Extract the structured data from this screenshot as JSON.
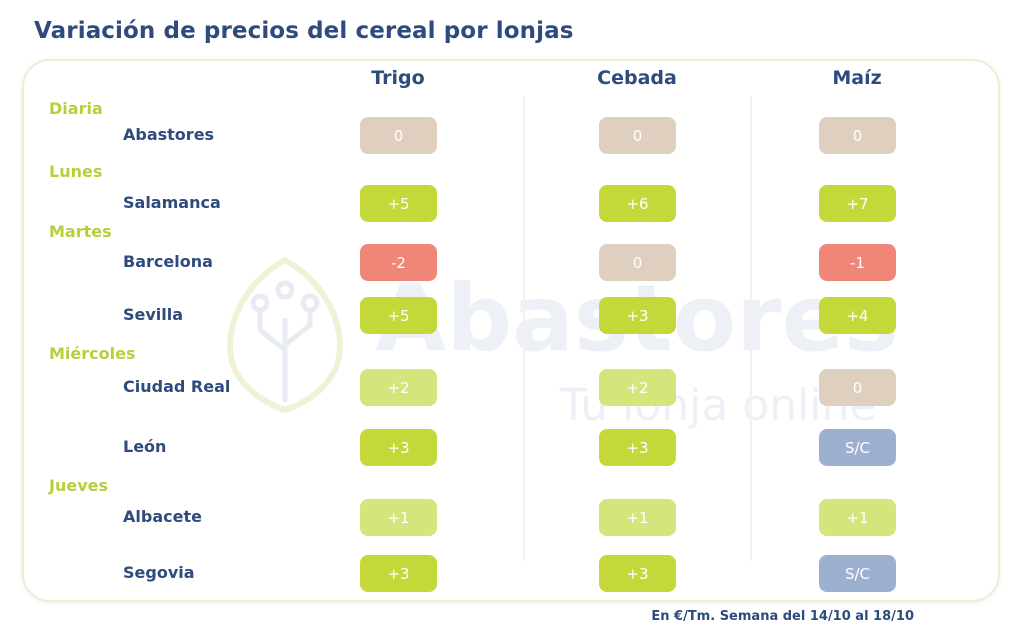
{
  "title": "Variación de precios del cereal por lonjas",
  "footnote": "En €/Tm. Semana del 14/10 al 18/10",
  "watermark": {
    "brand": "Abastores",
    "tagline": "Tu lonja online"
  },
  "colors": {
    "positive_strong": "#c4d83a",
    "positive_light": "#d6e47c",
    "zero": "#dfcfbf",
    "negative": "#f08678",
    "no_quote": "#9db0cf",
    "title": "#2f4a7d",
    "day_label": "#b8cf3b"
  },
  "chart_data": {
    "type": "table",
    "title": "Variación de precios del cereal por lonjas",
    "columns": [
      "Trigo",
      "Cebada",
      "Maíz"
    ],
    "unit": "€/Tm",
    "rows": [
      {
        "day": "Diaria",
        "lonja": "Abastores",
        "values": [
          "0",
          "0",
          "0"
        ],
        "styles": [
          "zero",
          "zero",
          "zero"
        ]
      },
      {
        "day": "Lunes",
        "lonja": "Salamanca",
        "values": [
          "+5",
          "+6",
          "+7"
        ],
        "styles": [
          "positive_strong",
          "positive_strong",
          "positive_strong"
        ]
      },
      {
        "day": "Martes",
        "lonja": "Barcelona",
        "values": [
          "-2",
          "0",
          "-1"
        ],
        "styles": [
          "negative",
          "zero",
          "negative"
        ]
      },
      {
        "day": "",
        "lonja": "Sevilla",
        "values": [
          "+5",
          "+3",
          "+4"
        ],
        "styles": [
          "positive_strong",
          "positive_strong",
          "positive_strong"
        ]
      },
      {
        "day": "Miércoles",
        "lonja": "Ciudad Real",
        "values": [
          "+2",
          "+2",
          "0"
        ],
        "styles": [
          "positive_light",
          "positive_light",
          "zero"
        ]
      },
      {
        "day": "",
        "lonja": "León",
        "values": [
          "+3",
          "+3",
          "S/C"
        ],
        "styles": [
          "positive_strong",
          "positive_strong",
          "no_quote"
        ]
      },
      {
        "day": "Jueves",
        "lonja": "Albacete",
        "values": [
          "+1",
          "+1",
          "+1"
        ],
        "styles": [
          "positive_light",
          "positive_light",
          "positive_light"
        ]
      },
      {
        "day": "",
        "lonja": "Segovia",
        "values": [
          "+3",
          "+3",
          "S/C"
        ],
        "styles": [
          "positive_strong",
          "positive_strong",
          "no_quote"
        ]
      }
    ]
  }
}
